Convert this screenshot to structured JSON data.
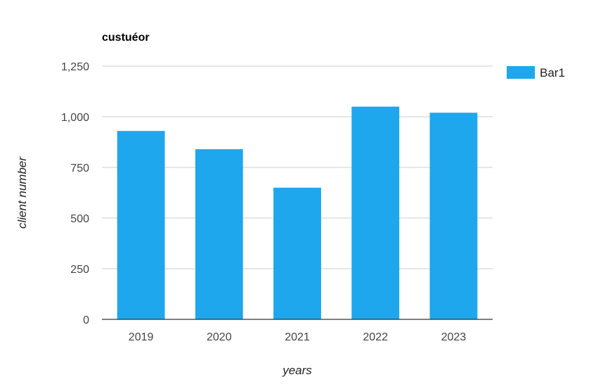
{
  "chart_data": {
    "type": "bar",
    "title": "custuéor",
    "xlabel": "years",
    "ylabel": "client number",
    "categories": [
      "2019",
      "2020",
      "2021",
      "2022",
      "2023"
    ],
    "series": [
      {
        "name": "Bar1",
        "values": [
          930,
          840,
          650,
          1050,
          1020
        ],
        "color": "#1ea7ec"
      }
    ],
    "ylim": [
      0,
      1250
    ],
    "yticks": [
      0,
      250,
      500,
      750,
      1000,
      1250
    ],
    "ytick_labels": [
      "0",
      "250",
      "500",
      "750",
      "1,000",
      "1,250"
    ],
    "grid": true,
    "legend": "right",
    "colors": {
      "gridline": "#cccccc",
      "baseline": "#333333"
    }
  }
}
